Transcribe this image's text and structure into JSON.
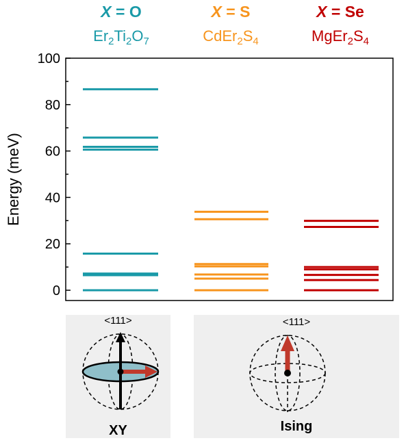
{
  "chart_data": {
    "type": "level-diagram",
    "ylabel": "Energy (meV)",
    "ylim": [
      0,
      100
    ],
    "yticks": [
      0,
      20,
      40,
      60,
      80,
      100
    ],
    "grid": false,
    "series": [
      {
        "x_label": "X",
        "x_value": "O",
        "formula": [
          "Er",
          "2",
          "Ti",
          "2",
          "O",
          "7"
        ],
        "color": "#1a9aa8",
        "levels": [
          0,
          6.5,
          7.2,
          15.8,
          60.6,
          61.8,
          65.8,
          86.6
        ]
      },
      {
        "x_label": "X",
        "x_value": "S",
        "formula": [
          "CdEr",
          "2",
          "S",
          "4"
        ],
        "color": "#f7941d",
        "levels": [
          0,
          5.0,
          6.8,
          10.3,
          11.3,
          30.6,
          33.8
        ]
      },
      {
        "x_label": "X",
        "x_value": "Se",
        "formula": [
          "MgEr",
          "2",
          "S",
          "4"
        ],
        "color": "#c00000",
        "levels": [
          0,
          4.4,
          6.6,
          9.0,
          10.0,
          27.3,
          29.9
        ]
      }
    ]
  },
  "panels": [
    {
      "title": "XY",
      "axis": "<111>"
    },
    {
      "title": "Ising",
      "axis": "<111>"
    }
  ],
  "colors": {
    "arrow": "#c0392b",
    "plane": "#8fbfc9",
    "panel_bg": "#efefef"
  }
}
